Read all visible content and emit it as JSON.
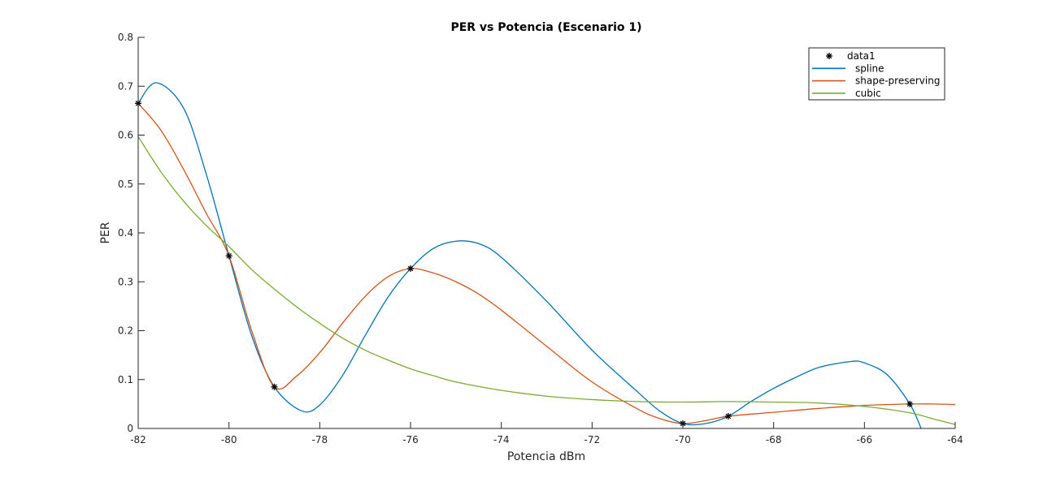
{
  "chart_data": {
    "type": "line",
    "title": "PER vs Potencia (Escenario 1)",
    "xlabel": "Potencia dBm",
    "ylabel": "PER",
    "xlim": [
      -82,
      -64
    ],
    "ylim": [
      0,
      0.8
    ],
    "xticks": [
      -82,
      -80,
      -78,
      -76,
      -74,
      -72,
      -70,
      -68,
      -66,
      -64
    ],
    "yticks": [
      0,
      0.1,
      0.2,
      0.3,
      0.4,
      0.5,
      0.6,
      0.7,
      0.8
    ],
    "xtick_labels": [
      "-82",
      "-80",
      "-78",
      "-76",
      "-74",
      "-72",
      "-70",
      "-68",
      "-66",
      "-64"
    ],
    "ytick_labels": [
      "0",
      "0.1",
      "0.2",
      "0.3",
      "0.4",
      "0.5",
      "0.6",
      "0.7",
      "0.8"
    ],
    "grid": false,
    "legend_position": "top-right",
    "series": [
      {
        "name": "data1",
        "kind": "markers",
        "marker": "*",
        "color": "#000000",
        "x": [
          -82,
          -80,
          -79,
          -76,
          -70,
          -69,
          -65
        ],
        "y": [
          0.665,
          0.353,
          0.085,
          0.327,
          0.01,
          0.025,
          0.05
        ]
      },
      {
        "name": "spline",
        "kind": "line",
        "color": "#0072BD",
        "x": [
          -82,
          -81.6,
          -81,
          -80.5,
          -80,
          -79.5,
          -79,
          -78.4,
          -78,
          -77.5,
          -77,
          -76.5,
          -76,
          -75.5,
          -75,
          -74.5,
          -74,
          -73,
          -72,
          -71,
          -70.5,
          -70,
          -69.5,
          -69,
          -68.5,
          -68,
          -67.5,
          -67,
          -66.3,
          -66,
          -65.5,
          -65,
          -64.75
        ],
        "y": [
          0.665,
          0.707,
          0.655,
          0.52,
          0.353,
          0.19,
          0.085,
          0.036,
          0.048,
          0.108,
          0.19,
          0.268,
          0.327,
          0.368,
          0.383,
          0.378,
          0.35,
          0.26,
          0.16,
          0.075,
          0.035,
          0.01,
          0.01,
          0.025,
          0.055,
          0.082,
          0.105,
          0.125,
          0.137,
          0.134,
          0.11,
          0.05,
          0.0
        ]
      },
      {
        "name": "shape-preserving",
        "kind": "line",
        "color": "#D95319",
        "x": [
          -82,
          -81.5,
          -81,
          -80.5,
          -80,
          -79.5,
          -79,
          -78.5,
          -78,
          -77.5,
          -77,
          -76.5,
          -76,
          -75.5,
          -75,
          -74.5,
          -74,
          -73,
          -72,
          -71,
          -70.5,
          -70,
          -69.5,
          -69,
          -68,
          -67,
          -66,
          -65,
          -64.5,
          -64
        ],
        "y": [
          0.665,
          0.61,
          0.53,
          0.44,
          0.353,
          0.2,
          0.085,
          0.108,
          0.155,
          0.215,
          0.27,
          0.31,
          0.327,
          0.318,
          0.3,
          0.275,
          0.242,
          0.168,
          0.095,
          0.04,
          0.02,
          0.01,
          0.016,
          0.025,
          0.033,
          0.041,
          0.047,
          0.05,
          0.05,
          0.049
        ]
      },
      {
        "name": "cubic",
        "kind": "line",
        "color": "#77AC30",
        "x": [
          -82,
          -81.5,
          -81,
          -80.5,
          -80,
          -79.5,
          -79,
          -78.5,
          -78,
          -77.5,
          -77,
          -76.5,
          -76,
          -75.5,
          -75,
          -74,
          -73,
          -72,
          -71,
          -70,
          -69,
          -68,
          -67,
          -66,
          -65,
          -64.5,
          -64
        ],
        "y": [
          0.597,
          0.525,
          0.465,
          0.415,
          0.372,
          0.325,
          0.285,
          0.248,
          0.215,
          0.185,
          0.16,
          0.14,
          0.122,
          0.108,
          0.095,
          0.078,
          0.066,
          0.059,
          0.055,
          0.054,
          0.055,
          0.054,
          0.052,
          0.045,
          0.032,
          0.02,
          0.008
        ]
      }
    ]
  }
}
